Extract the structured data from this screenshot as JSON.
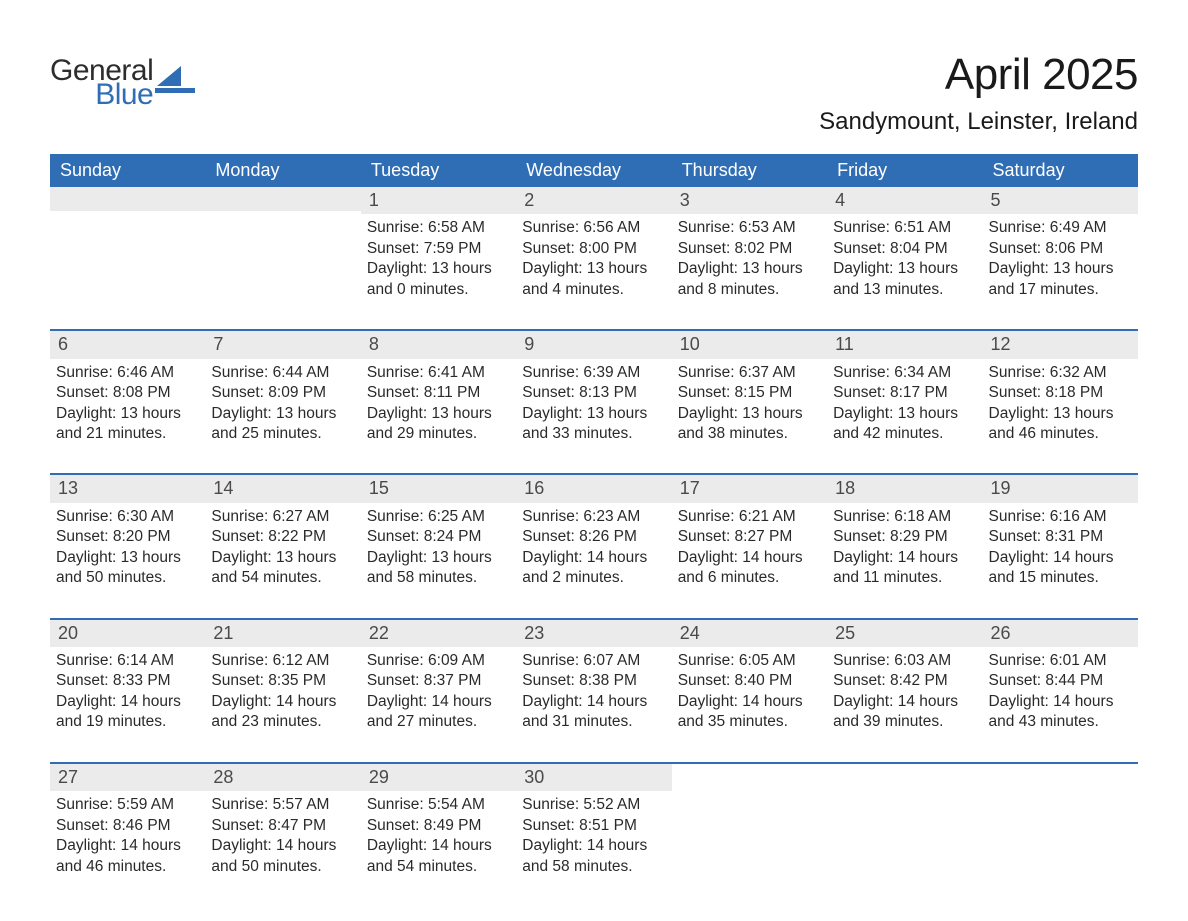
{
  "brand": {
    "text1": "General",
    "text2": "Blue",
    "color1": "#2d2d2d",
    "color2": "#2f6eb5",
    "sail_color": "#2f6eb5"
  },
  "title": "April 2025",
  "location": "Sandymount, Leinster, Ireland",
  "header_bg": "#2f6eb5",
  "header_fg": "#ffffff",
  "daynum_bg": "#ebebeb",
  "row_border": "#2f6eb5",
  "weekdays": [
    "Sunday",
    "Monday",
    "Tuesday",
    "Wednesday",
    "Thursday",
    "Friday",
    "Saturday"
  ],
  "weeks": [
    [
      null,
      null,
      {
        "n": "1",
        "sunrise": "Sunrise: 6:58 AM",
        "sunset": "Sunset: 7:59 PM",
        "d1": "Daylight: 13 hours",
        "d2": "and 0 minutes."
      },
      {
        "n": "2",
        "sunrise": "Sunrise: 6:56 AM",
        "sunset": "Sunset: 8:00 PM",
        "d1": "Daylight: 13 hours",
        "d2": "and 4 minutes."
      },
      {
        "n": "3",
        "sunrise": "Sunrise: 6:53 AM",
        "sunset": "Sunset: 8:02 PM",
        "d1": "Daylight: 13 hours",
        "d2": "and 8 minutes."
      },
      {
        "n": "4",
        "sunrise": "Sunrise: 6:51 AM",
        "sunset": "Sunset: 8:04 PM",
        "d1": "Daylight: 13 hours",
        "d2": "and 13 minutes."
      },
      {
        "n": "5",
        "sunrise": "Sunrise: 6:49 AM",
        "sunset": "Sunset: 8:06 PM",
        "d1": "Daylight: 13 hours",
        "d2": "and 17 minutes."
      }
    ],
    [
      {
        "n": "6",
        "sunrise": "Sunrise: 6:46 AM",
        "sunset": "Sunset: 8:08 PM",
        "d1": "Daylight: 13 hours",
        "d2": "and 21 minutes."
      },
      {
        "n": "7",
        "sunrise": "Sunrise: 6:44 AM",
        "sunset": "Sunset: 8:09 PM",
        "d1": "Daylight: 13 hours",
        "d2": "and 25 minutes."
      },
      {
        "n": "8",
        "sunrise": "Sunrise: 6:41 AM",
        "sunset": "Sunset: 8:11 PM",
        "d1": "Daylight: 13 hours",
        "d2": "and 29 minutes."
      },
      {
        "n": "9",
        "sunrise": "Sunrise: 6:39 AM",
        "sunset": "Sunset: 8:13 PM",
        "d1": "Daylight: 13 hours",
        "d2": "and 33 minutes."
      },
      {
        "n": "10",
        "sunrise": "Sunrise: 6:37 AM",
        "sunset": "Sunset: 8:15 PM",
        "d1": "Daylight: 13 hours",
        "d2": "and 38 minutes."
      },
      {
        "n": "11",
        "sunrise": "Sunrise: 6:34 AM",
        "sunset": "Sunset: 8:17 PM",
        "d1": "Daylight: 13 hours",
        "d2": "and 42 minutes."
      },
      {
        "n": "12",
        "sunrise": "Sunrise: 6:32 AM",
        "sunset": "Sunset: 8:18 PM",
        "d1": "Daylight: 13 hours",
        "d2": "and 46 minutes."
      }
    ],
    [
      {
        "n": "13",
        "sunrise": "Sunrise: 6:30 AM",
        "sunset": "Sunset: 8:20 PM",
        "d1": "Daylight: 13 hours",
        "d2": "and 50 minutes."
      },
      {
        "n": "14",
        "sunrise": "Sunrise: 6:27 AM",
        "sunset": "Sunset: 8:22 PM",
        "d1": "Daylight: 13 hours",
        "d2": "and 54 minutes."
      },
      {
        "n": "15",
        "sunrise": "Sunrise: 6:25 AM",
        "sunset": "Sunset: 8:24 PM",
        "d1": "Daylight: 13 hours",
        "d2": "and 58 minutes."
      },
      {
        "n": "16",
        "sunrise": "Sunrise: 6:23 AM",
        "sunset": "Sunset: 8:26 PM",
        "d1": "Daylight: 14 hours",
        "d2": "and 2 minutes."
      },
      {
        "n": "17",
        "sunrise": "Sunrise: 6:21 AM",
        "sunset": "Sunset: 8:27 PM",
        "d1": "Daylight: 14 hours",
        "d2": "and 6 minutes."
      },
      {
        "n": "18",
        "sunrise": "Sunrise: 6:18 AM",
        "sunset": "Sunset: 8:29 PM",
        "d1": "Daylight: 14 hours",
        "d2": "and 11 minutes."
      },
      {
        "n": "19",
        "sunrise": "Sunrise: 6:16 AM",
        "sunset": "Sunset: 8:31 PM",
        "d1": "Daylight: 14 hours",
        "d2": "and 15 minutes."
      }
    ],
    [
      {
        "n": "20",
        "sunrise": "Sunrise: 6:14 AM",
        "sunset": "Sunset: 8:33 PM",
        "d1": "Daylight: 14 hours",
        "d2": "and 19 minutes."
      },
      {
        "n": "21",
        "sunrise": "Sunrise: 6:12 AM",
        "sunset": "Sunset: 8:35 PM",
        "d1": "Daylight: 14 hours",
        "d2": "and 23 minutes."
      },
      {
        "n": "22",
        "sunrise": "Sunrise: 6:09 AM",
        "sunset": "Sunset: 8:37 PM",
        "d1": "Daylight: 14 hours",
        "d2": "and 27 minutes."
      },
      {
        "n": "23",
        "sunrise": "Sunrise: 6:07 AM",
        "sunset": "Sunset: 8:38 PM",
        "d1": "Daylight: 14 hours",
        "d2": "and 31 minutes."
      },
      {
        "n": "24",
        "sunrise": "Sunrise: 6:05 AM",
        "sunset": "Sunset: 8:40 PM",
        "d1": "Daylight: 14 hours",
        "d2": "and 35 minutes."
      },
      {
        "n": "25",
        "sunrise": "Sunrise: 6:03 AM",
        "sunset": "Sunset: 8:42 PM",
        "d1": "Daylight: 14 hours",
        "d2": "and 39 minutes."
      },
      {
        "n": "26",
        "sunrise": "Sunrise: 6:01 AM",
        "sunset": "Sunset: 8:44 PM",
        "d1": "Daylight: 14 hours",
        "d2": "and 43 minutes."
      }
    ],
    [
      {
        "n": "27",
        "sunrise": "Sunrise: 5:59 AM",
        "sunset": "Sunset: 8:46 PM",
        "d1": "Daylight: 14 hours",
        "d2": "and 46 minutes."
      },
      {
        "n": "28",
        "sunrise": "Sunrise: 5:57 AM",
        "sunset": "Sunset: 8:47 PM",
        "d1": "Daylight: 14 hours",
        "d2": "and 50 minutes."
      },
      {
        "n": "29",
        "sunrise": "Sunrise: 5:54 AM",
        "sunset": "Sunset: 8:49 PM",
        "d1": "Daylight: 14 hours",
        "d2": "and 54 minutes."
      },
      {
        "n": "30",
        "sunrise": "Sunrise: 5:52 AM",
        "sunset": "Sunset: 8:51 PM",
        "d1": "Daylight: 14 hours",
        "d2": "and 58 minutes."
      },
      null,
      null,
      null
    ]
  ]
}
